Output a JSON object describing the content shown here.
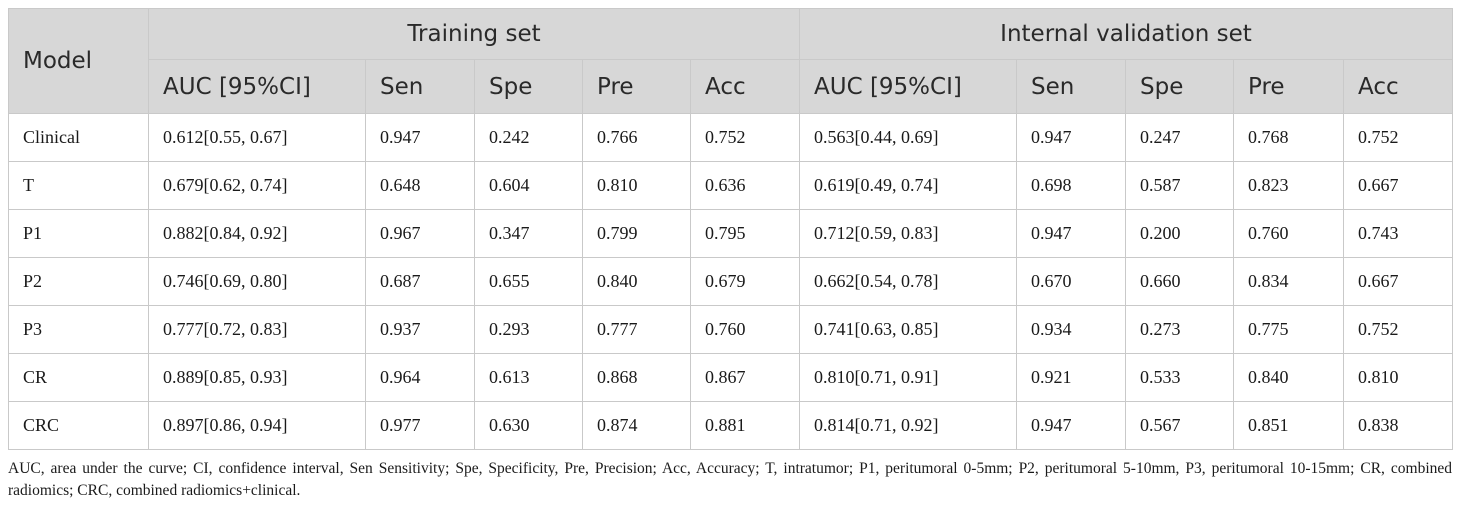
{
  "header": {
    "model_label": "Model",
    "groups": [
      "Training set",
      "Internal validation set"
    ],
    "metrics": [
      "AUC [95%CI]",
      "Sen",
      "Spe",
      "Pre",
      "Acc"
    ]
  },
  "rows": [
    {
      "model": "Clinical",
      "train": [
        "0.612[0.55, 0.67]",
        "0.947",
        "0.242",
        "0.766",
        "0.752"
      ],
      "valid": [
        "0.563[0.44, 0.69]",
        "0.947",
        "0.247",
        "0.768",
        "0.752"
      ]
    },
    {
      "model": "T",
      "train": [
        "0.679[0.62, 0.74]",
        "0.648",
        "0.604",
        "0.810",
        "0.636"
      ],
      "valid": [
        "0.619[0.49, 0.74]",
        "0.698",
        "0.587",
        "0.823",
        "0.667"
      ]
    },
    {
      "model": "P1",
      "train": [
        "0.882[0.84, 0.92]",
        "0.967",
        "0.347",
        "0.799",
        "0.795"
      ],
      "valid": [
        "0.712[0.59, 0.83]",
        "0.947",
        "0.200",
        "0.760",
        "0.743"
      ]
    },
    {
      "model": "P2",
      "train": [
        "0.746[0.69, 0.80]",
        "0.687",
        "0.655",
        "0.840",
        "0.679"
      ],
      "valid": [
        "0.662[0.54, 0.78]",
        "0.670",
        "0.660",
        "0.834",
        "0.667"
      ]
    },
    {
      "model": "P3",
      "train": [
        "0.777[0.72, 0.83]",
        "0.937",
        "0.293",
        "0.777",
        "0.760"
      ],
      "valid": [
        "0.741[0.63, 0.85]",
        "0.934",
        "0.273",
        "0.775",
        "0.752"
      ]
    },
    {
      "model": "CR",
      "train": [
        "0.889[0.85, 0.93]",
        "0.964",
        "0.613",
        "0.868",
        "0.867"
      ],
      "valid": [
        "0.810[0.71, 0.91]",
        "0.921",
        "0.533",
        "0.840",
        "0.810"
      ]
    },
    {
      "model": "CRC",
      "train": [
        "0.897[0.86, 0.94]",
        "0.977",
        "0.630",
        "0.874",
        "0.881"
      ],
      "valid": [
        "0.814[0.71, 0.92]",
        "0.947",
        "0.567",
        "0.851",
        "0.838"
      ]
    }
  ],
  "footnote": "AUC, area under the curve; CI, confidence interval, Sen Sensitivity; Spe, Specificity, Pre, Precision; Acc, Accuracy; T, intratumor; P1, peritumoral 0-5mm; P2, peritumoral 5-10mm, P3, peritumoral 10-15mm; CR, combined radiomics; CRC, combined radiomics+clinical."
}
